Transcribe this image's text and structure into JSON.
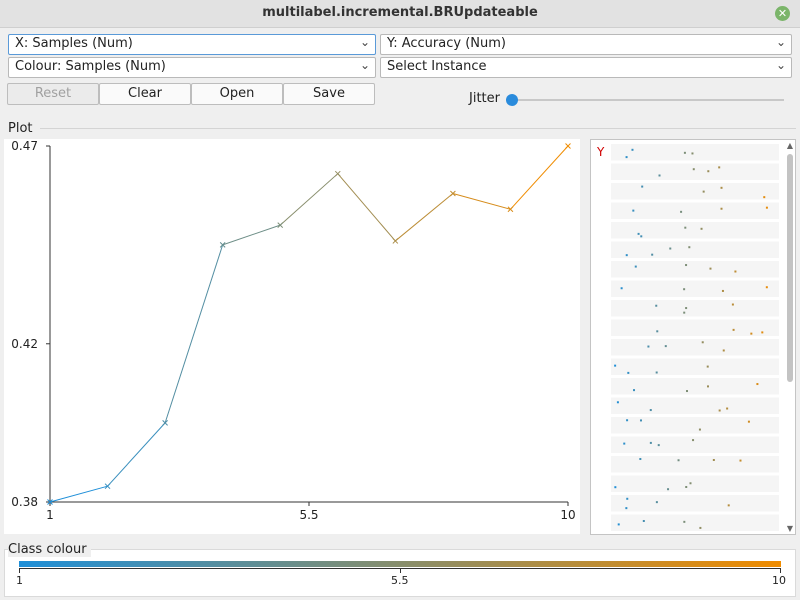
{
  "window": {
    "title": "multilabel.incremental.BRUpdateable"
  },
  "selectors": {
    "x_axis": "X: Samples (Num)",
    "y_axis": "Y: Accuracy (Num)",
    "colour": "Colour: Samples (Num)",
    "instance": "Select Instance"
  },
  "buttons": {
    "reset": "Reset",
    "clear": "Clear",
    "open": "Open",
    "save": "Save"
  },
  "jitter": {
    "label": "Jitter",
    "value": 0
  },
  "plot": {
    "label": "Plot"
  },
  "chart_data": {
    "type": "line",
    "x": [
      1,
      2,
      3,
      4,
      5,
      6,
      7,
      8,
      9,
      10
    ],
    "y": [
      0.38,
      0.384,
      0.4,
      0.445,
      0.45,
      0.463,
      0.446,
      0.458,
      0.454,
      0.47
    ],
    "xlim": [
      1,
      10
    ],
    "ylim": [
      0.38,
      0.47
    ],
    "x_ticks": [
      "1",
      "5.5",
      "10"
    ],
    "y_ticks": [
      "0.47",
      "0.42",
      "0.38"
    ],
    "marker": "x",
    "colour_from": "#1f8fd8",
    "colour_to": "#f08c00"
  },
  "jitter_panel": {
    "axis_label": "Y"
  },
  "class_colour": {
    "label": "Class colour",
    "ticks": [
      "1",
      "5.5",
      "10"
    ],
    "colour_from": "#1f8fd8",
    "colour_to": "#f08c00"
  }
}
